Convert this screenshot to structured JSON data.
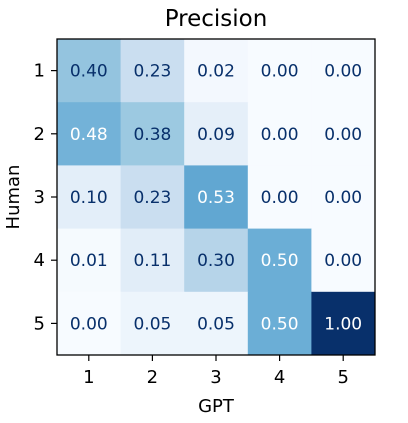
{
  "chart_data": {
    "type": "heatmap",
    "title": "Precision",
    "xlabel": "GPT",
    "ylabel": "Human",
    "x_categories": [
      "1",
      "2",
      "3",
      "4",
      "5"
    ],
    "y_categories": [
      "1",
      "2",
      "3",
      "4",
      "5"
    ],
    "values": [
      [
        0.4,
        0.23,
        0.02,
        0.0,
        0.0
      ],
      [
        0.48,
        0.38,
        0.09,
        0.0,
        0.0
      ],
      [
        0.1,
        0.23,
        0.53,
        0.0,
        0.0
      ],
      [
        0.01,
        0.11,
        0.3,
        0.5,
        0.0
      ],
      [
        0.0,
        0.05,
        0.05,
        0.5,
        1.0
      ]
    ],
    "value_range": [
      0,
      1
    ],
    "colormap": "Blues",
    "text_color_dark": "#08306b",
    "text_color_light": "#ffffff",
    "grid": false
  }
}
